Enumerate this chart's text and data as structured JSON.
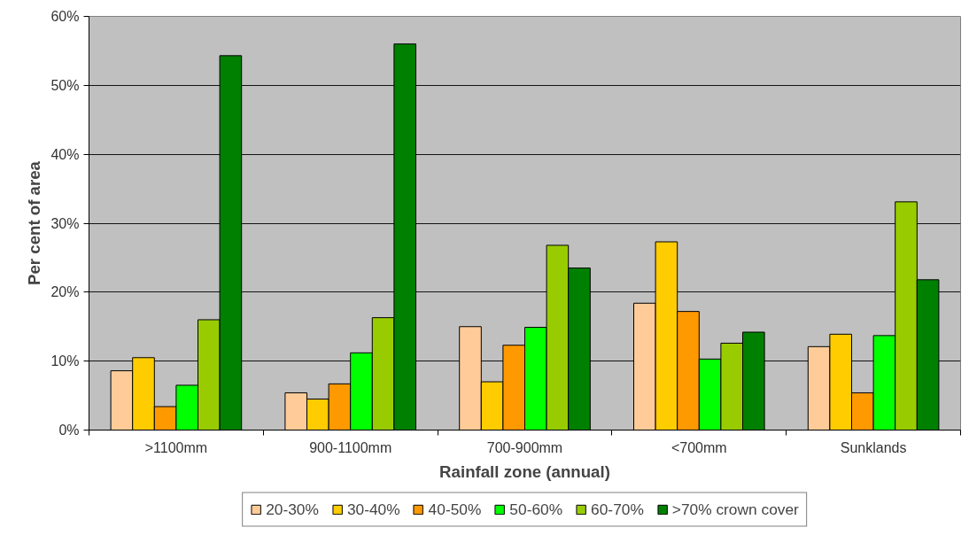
{
  "chart_data": {
    "type": "bar",
    "xlabel": "Rainfall zone (annual)",
    "ylabel": "Per cent of area",
    "categories": [
      ">1100mm",
      "900-1100mm",
      "700-900mm",
      "<700mm",
      "Sunklands"
    ],
    "series": [
      {
        "name": "20-30%",
        "color": "#ffcc99",
        "values": [
          8.6,
          5.4,
          15.0,
          18.4,
          12.1
        ]
      },
      {
        "name": "30-40%",
        "color": "#ffcc00",
        "values": [
          10.5,
          4.5,
          7.0,
          27.3,
          13.9
        ]
      },
      {
        "name": "40-50%",
        "color": "#ff9900",
        "values": [
          3.4,
          6.7,
          12.3,
          17.2,
          5.4
        ]
      },
      {
        "name": "50-60%",
        "color": "#00ff00",
        "values": [
          6.5,
          11.2,
          14.9,
          10.3,
          13.7
        ]
      },
      {
        "name": "60-70%",
        "color": "#99cc00",
        "values": [
          16.0,
          16.3,
          26.8,
          12.6,
          33.1
        ]
      },
      {
        "name": ">70% crown cover",
        "color": "#008000",
        "values": [
          54.3,
          56.0,
          23.5,
          14.2,
          21.8
        ]
      }
    ],
    "ylim": [
      0,
      60
    ],
    "yticks": [
      {
        "value": 0,
        "label": "0%"
      },
      {
        "value": 10,
        "label": "10%"
      },
      {
        "value": 20,
        "label": "20%"
      },
      {
        "value": 30,
        "label": "30%"
      },
      {
        "value": 40,
        "label": "40%"
      },
      {
        "value": 50,
        "label": "50%"
      },
      {
        "value": 60,
        "label": "60%"
      }
    ],
    "grid": "y",
    "legend": "bottom"
  }
}
